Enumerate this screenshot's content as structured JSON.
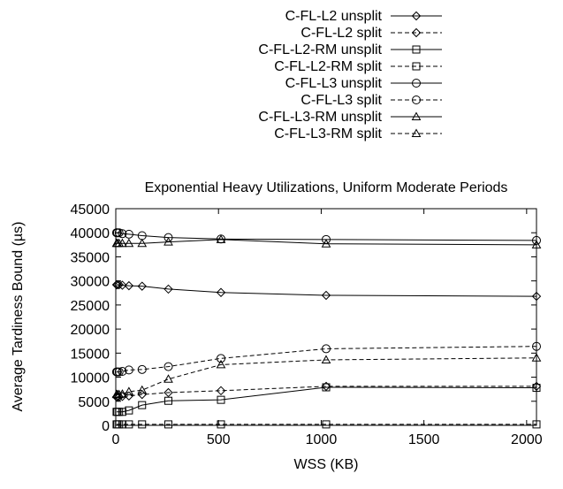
{
  "chart_data": {
    "type": "line",
    "title": "Exponential Heavy Utilizations, Uniform Moderate Periods",
    "xlabel": "WSS (KB)",
    "ylabel": "Average Tardiness Bound (µs)",
    "xlim": [
      0,
      2048
    ],
    "ylim": [
      0,
      45000
    ],
    "xticks": [
      "0",
      "500",
      "1000",
      "1500",
      "2000"
    ],
    "yticks": [
      "0",
      "5000",
      "10000",
      "15000",
      "20000",
      "25000",
      "30000",
      "35000",
      "40000",
      "45000"
    ],
    "grid": false,
    "legend_position": "top",
    "x": [
      4,
      8,
      16,
      32,
      64,
      128,
      256,
      512,
      1024,
      2048
    ],
    "series": [
      {
        "name": "C-FL-L2 unsplit",
        "marker": "diamond",
        "dash": "solid",
        "values": [
          29200,
          29200,
          29200,
          29100,
          29000,
          28900,
          28300,
          27600,
          27000,
          26800
        ]
      },
      {
        "name": "C-FL-L2 split",
        "marker": "diamond",
        "dash": "dashed",
        "values": [
          5900,
          5900,
          5900,
          6000,
          6100,
          6400,
          6800,
          7200,
          8100,
          8100
        ]
      },
      {
        "name": "C-FL-L2-RM unsplit",
        "marker": "square",
        "dash": "solid",
        "values": [
          2800,
          2800,
          2800,
          2800,
          3100,
          4200,
          5100,
          5300,
          7900,
          7800
        ]
      },
      {
        "name": "C-FL-L2-RM split",
        "marker": "square",
        "dash": "dashed",
        "values": [
          200,
          200,
          200,
          200,
          200,
          200,
          200,
          200,
          200,
          200
        ]
      },
      {
        "name": "C-FL-L3 unsplit",
        "marker": "circle",
        "dash": "solid",
        "values": [
          40000,
          40000,
          40000,
          39800,
          39700,
          39400,
          39000,
          38700,
          38600,
          38400
        ]
      },
      {
        "name": "C-FL-L3 split",
        "marker": "circle",
        "dash": "dashed",
        "values": [
          11100,
          11100,
          11100,
          11200,
          11500,
          11600,
          12200,
          13900,
          15900,
          16400
        ]
      },
      {
        "name": "C-FL-L3-RM unsplit",
        "marker": "triangle",
        "dash": "solid",
        "values": [
          37800,
          37800,
          37800,
          37800,
          37800,
          37800,
          38100,
          38600,
          37700,
          37500
        ]
      },
      {
        "name": "C-FL-L3-RM split",
        "marker": "triangle",
        "dash": "dashed",
        "values": [
          6400,
          6400,
          6400,
          6500,
          7000,
          7300,
          9600,
          12600,
          13600,
          14000
        ]
      }
    ]
  }
}
